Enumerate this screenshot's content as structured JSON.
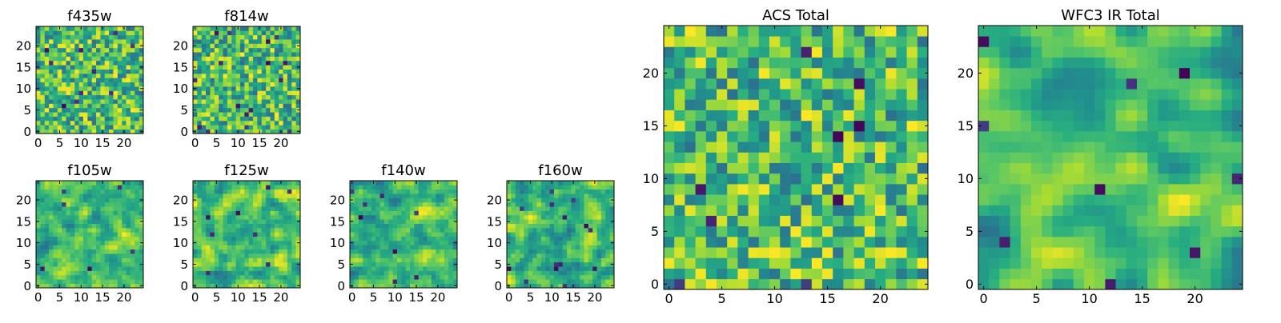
{
  "chart_data": [
    {
      "type": "heatmap",
      "title": "f435w",
      "xlabel": "",
      "ylabel": "",
      "x_ticks": [
        "0",
        "5",
        "10",
        "15",
        "20"
      ],
      "y_ticks": [
        "0",
        "5",
        "10",
        "15",
        "20"
      ],
      "xlim": [
        -0.5,
        24.5
      ],
      "ylim": [
        -0.5,
        24.5
      ],
      "grid_size": 25,
      "origin": "lower",
      "colormap": "viridis",
      "colorbar": false,
      "grid": false
    },
    {
      "type": "heatmap",
      "title": "f814w",
      "xlabel": "",
      "ylabel": "",
      "x_ticks": [
        "0",
        "5",
        "10",
        "15",
        "20"
      ],
      "y_ticks": [
        "0",
        "5",
        "10",
        "15",
        "20"
      ],
      "xlim": [
        -0.5,
        24.5
      ],
      "ylim": [
        -0.5,
        24.5
      ],
      "grid_size": 25,
      "origin": "lower",
      "colormap": "viridis",
      "colorbar": false,
      "grid": false
    },
    {
      "type": "heatmap",
      "title": "f105w",
      "xlabel": "",
      "ylabel": "",
      "x_ticks": [
        "0",
        "5",
        "10",
        "15",
        "20"
      ],
      "y_ticks": [
        "0",
        "5",
        "10",
        "15",
        "20"
      ],
      "xlim": [
        -0.5,
        24.5
      ],
      "ylim": [
        -0.5,
        24.5
      ],
      "grid_size": 25,
      "origin": "lower",
      "colormap": "viridis",
      "colorbar": false,
      "grid": false
    },
    {
      "type": "heatmap",
      "title": "f125w",
      "xlabel": "",
      "ylabel": "",
      "x_ticks": [
        "0",
        "5",
        "10",
        "15",
        "20"
      ],
      "y_ticks": [
        "0",
        "5",
        "10",
        "15",
        "20"
      ],
      "xlim": [
        -0.5,
        24.5
      ],
      "ylim": [
        -0.5,
        24.5
      ],
      "grid_size": 25,
      "origin": "lower",
      "colormap": "viridis",
      "colorbar": false,
      "grid": false
    },
    {
      "type": "heatmap",
      "title": "f140w",
      "xlabel": "",
      "ylabel": "",
      "x_ticks": [
        "0",
        "5",
        "10",
        "15",
        "20"
      ],
      "y_ticks": [
        "0",
        "5",
        "10",
        "15",
        "20"
      ],
      "xlim": [
        -0.5,
        24.5
      ],
      "ylim": [
        -0.5,
        24.5
      ],
      "grid_size": 25,
      "origin": "lower",
      "colormap": "viridis",
      "colorbar": false,
      "grid": false
    },
    {
      "type": "heatmap",
      "title": "f160w",
      "xlabel": "",
      "ylabel": "",
      "x_ticks": [
        "0",
        "5",
        "10",
        "15",
        "20"
      ],
      "y_ticks": [
        "0",
        "5",
        "10",
        "15",
        "20"
      ],
      "xlim": [
        -0.5,
        24.5
      ],
      "ylim": [
        -0.5,
        24.5
      ],
      "grid_size": 25,
      "origin": "lower",
      "colormap": "viridis",
      "colorbar": false,
      "grid": false
    },
    {
      "type": "heatmap",
      "title": "ACS Total",
      "xlabel": "",
      "ylabel": "",
      "x_ticks": [
        "0",
        "5",
        "10",
        "15",
        "20"
      ],
      "y_ticks": [
        "0",
        "5",
        "10",
        "15",
        "20"
      ],
      "xlim": [
        -0.5,
        24.5
      ],
      "ylim": [
        -0.5,
        24.5
      ],
      "grid_size": 25,
      "origin": "lower",
      "colormap": "viridis",
      "colorbar": false,
      "grid": false
    },
    {
      "type": "heatmap",
      "title": "WFC3 IR Total",
      "xlabel": "",
      "ylabel": "",
      "x_ticks": [
        "0",
        "5",
        "10",
        "15",
        "20"
      ],
      "y_ticks": [
        "0",
        "5",
        "10",
        "15",
        "20"
      ],
      "xlim": [
        -0.5,
        24.5
      ],
      "ylim": [
        -0.5,
        24.5
      ],
      "grid_size": 25,
      "origin": "lower",
      "colormap": "viridis",
      "colorbar": false,
      "grid": false
    }
  ]
}
